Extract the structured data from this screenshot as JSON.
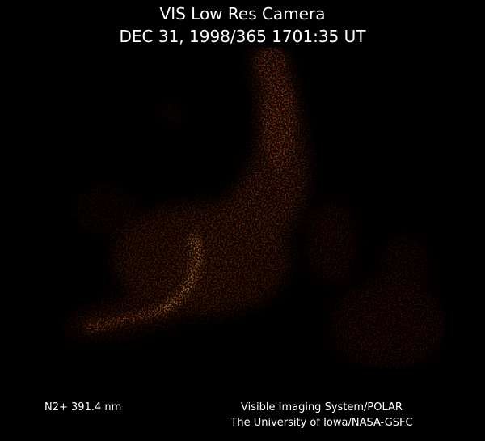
{
  "header": {
    "title": "VIS Low Res Camera",
    "timestamp": "DEC 31, 1998/365 1701:35 UT"
  },
  "footer": {
    "wavelength": "N2+ 391.4 nm",
    "instrument": "Visible Imaging System/POLAR",
    "institution": "The University of Iowa/NASA-GSFC"
  }
}
